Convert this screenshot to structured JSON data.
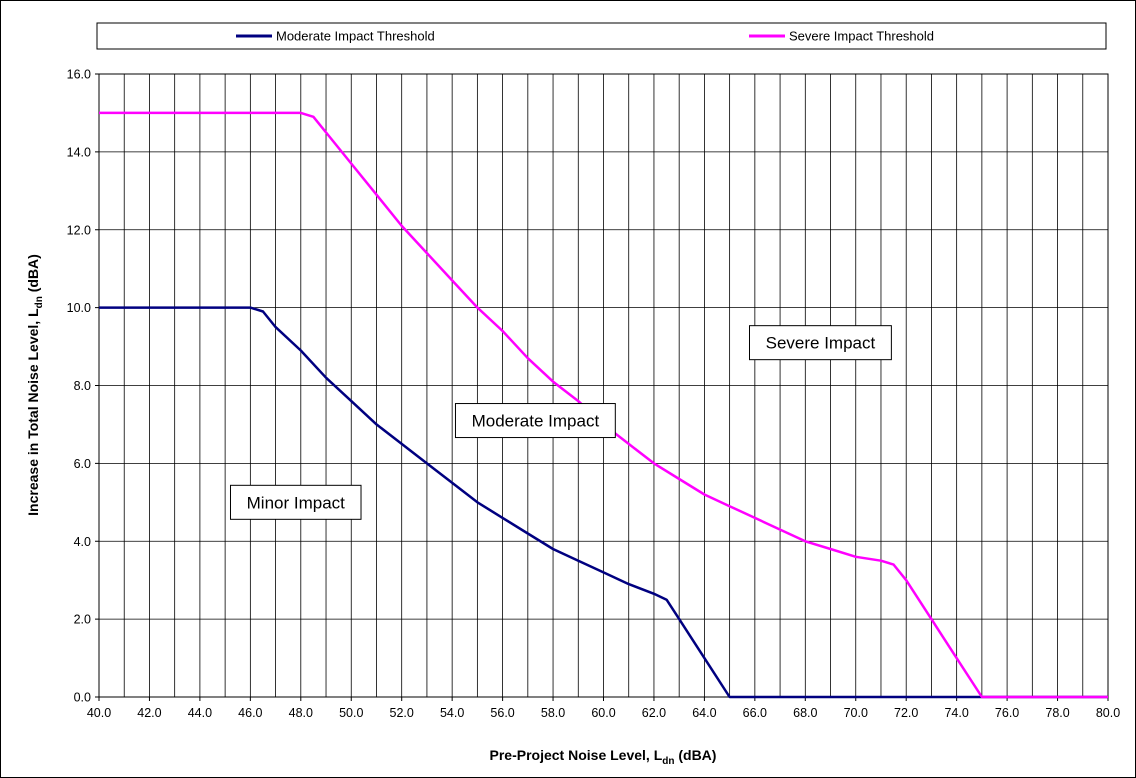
{
  "chart_data": {
    "type": "line",
    "xlabel": {
      "main": "Pre-Project Noise Level, L",
      "sub": "dn",
      "unit": " (dBA)"
    },
    "ylabel": {
      "main": "Increase in Total Noise Level, L",
      "sub": "dn",
      "unit": " (dBA)"
    },
    "xlim": [
      40,
      80
    ],
    "ylim": [
      0,
      16
    ],
    "x_tick_labels": [
      "40.0",
      "42.0",
      "44.0",
      "46.0",
      "48.0",
      "50.0",
      "52.0",
      "54.0",
      "56.0",
      "58.0",
      "60.0",
      "62.0",
      "64.0",
      "66.0",
      "68.0",
      "70.0",
      "72.0",
      "74.0",
      "76.0",
      "78.0",
      "80.0"
    ],
    "y_tick_labels": [
      "0.0",
      "2.0",
      "4.0",
      "6.0",
      "8.0",
      "10.0",
      "12.0",
      "14.0",
      "16.0"
    ],
    "grid": "major gridlines every 1.0 on x, every 2.0 on y",
    "legend_position": "top",
    "series": [
      {
        "name": "Moderate Impact Threshold",
        "color": "#000080",
        "x": [
          40,
          41,
          42,
          43,
          44,
          45,
          46,
          46.5,
          47,
          48,
          49,
          50,
          51,
          52,
          53,
          54,
          55,
          56,
          57,
          58,
          59,
          60,
          61,
          62,
          62.5,
          63,
          64,
          65,
          66,
          68,
          70,
          72,
          74,
          76,
          78,
          80
        ],
        "y": [
          10,
          10,
          10,
          10,
          10,
          10,
          10,
          9.9,
          9.5,
          8.9,
          8.2,
          7.6,
          7.0,
          6.5,
          6.0,
          5.5,
          5.0,
          4.6,
          4.2,
          3.8,
          3.5,
          3.2,
          2.9,
          2.65,
          2.5,
          2.0,
          1.0,
          0,
          0,
          0,
          0,
          0,
          0,
          0,
          0,
          0
        ]
      },
      {
        "name": "Severe Impact Threshold",
        "color": "#ff00ff",
        "x": [
          40,
          41,
          42,
          43,
          44,
          45,
          46,
          47,
          48,
          48.5,
          49,
          50,
          51,
          52,
          53,
          54,
          55,
          56,
          57,
          58,
          59,
          60,
          61,
          62,
          63,
          64,
          65,
          66,
          67,
          68,
          69,
          70,
          71,
          71.5,
          72,
          73,
          74,
          75,
          76,
          77,
          78,
          79,
          80
        ],
        "y": [
          15,
          15,
          15,
          15,
          15,
          15,
          15,
          15,
          15,
          14.9,
          14.5,
          13.7,
          12.9,
          12.1,
          11.4,
          10.7,
          10.0,
          9.4,
          8.7,
          8.1,
          7.6,
          7.0,
          6.5,
          6.0,
          5.6,
          5.2,
          4.9,
          4.6,
          4.3,
          4.0,
          3.8,
          3.6,
          3.5,
          3.4,
          3.0,
          2.0,
          1.0,
          0,
          0,
          0,
          0,
          0,
          0
        ]
      }
    ],
    "annotations": [
      {
        "text": "Minor Impact",
        "x": 47.8,
        "y": 5.0
      },
      {
        "text": "Moderate Impact",
        "x": 57.3,
        "y": 7.1
      },
      {
        "text": "Severe Impact",
        "x": 68.6,
        "y": 9.1
      }
    ]
  }
}
